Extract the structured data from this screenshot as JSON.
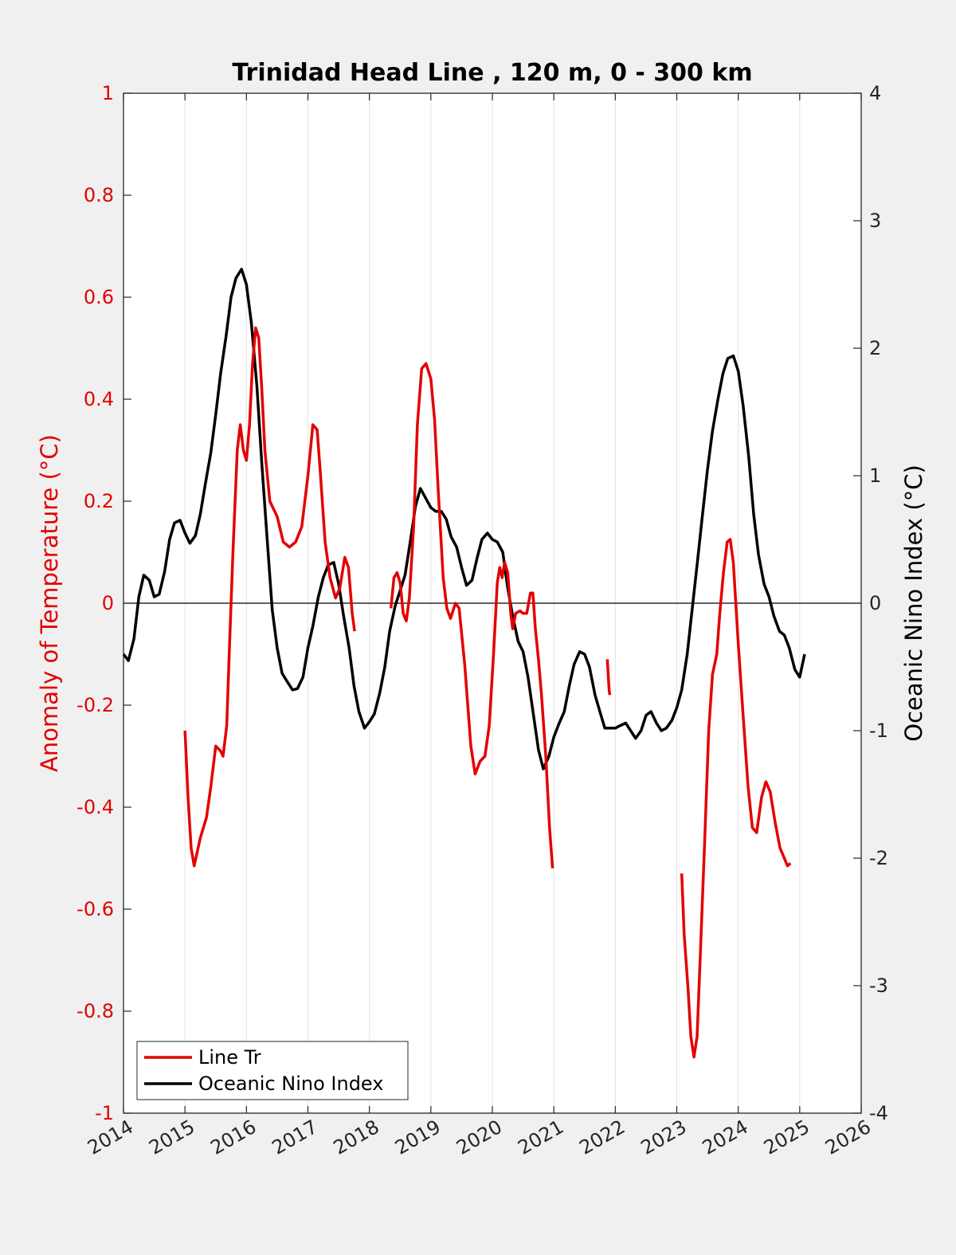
{
  "chart_data": {
    "type": "line",
    "title": "Trinidad Head Line , 120 m, 0 - 300 km",
    "ylabel_left": "Anomaly of Temperature (°C)",
    "ylabel_right": "Oceanic Nino Index (°C)",
    "xlim": [
      2014,
      2026
    ],
    "ylim_left": [
      -1,
      1
    ],
    "ylim_right": [
      -4,
      4
    ],
    "x_ticks": [
      "2014",
      "2015",
      "2016",
      "2017",
      "2018",
      "2019",
      "2020",
      "2021",
      "2022",
      "2023",
      "2024",
      "2025",
      "2026"
    ],
    "y_ticks_left": [
      "1",
      "0.8",
      "0.6",
      "0.4",
      "0.2",
      "0",
      "-0.2",
      "-0.4",
      "-0.6",
      "-0.8",
      "-1"
    ],
    "y_ticks_right": [
      "4",
      "3",
      "2",
      "1",
      "0",
      "-1",
      "-2",
      "-3",
      "-4"
    ],
    "grid": "vertical",
    "legend_position": "bottom-left",
    "colors": {
      "line_tr": "#e30000",
      "oni": "#000000"
    },
    "series": [
      {
        "name": "Line Tr",
        "axis": "left",
        "color": "#e30000",
        "segments": [
          [
            [
              2015.0,
              -0.25
            ],
            [
              2015.05,
              -0.38
            ],
            [
              2015.1,
              -0.48
            ],
            [
              2015.15,
              -0.515
            ],
            [
              2015.25,
              -0.46
            ],
            [
              2015.35,
              -0.42
            ],
            [
              2015.42,
              -0.36
            ],
            [
              2015.5,
              -0.28
            ],
            [
              2015.58,
              -0.29
            ],
            [
              2015.62,
              -0.3
            ],
            [
              2015.68,
              -0.24
            ],
            [
              2015.72,
              -0.1
            ],
            [
              2015.78,
              0.1
            ],
            [
              2015.85,
              0.3
            ],
            [
              2015.9,
              0.35
            ],
            [
              2015.95,
              0.3
            ],
            [
              2016.0,
              0.28
            ],
            [
              2016.05,
              0.35
            ],
            [
              2016.1,
              0.47
            ],
            [
              2016.15,
              0.54
            ],
            [
              2016.2,
              0.52
            ],
            [
              2016.25,
              0.42
            ],
            [
              2016.3,
              0.3
            ],
            [
              2016.38,
              0.2
            ],
            [
              2016.5,
              0.17
            ],
            [
              2016.6,
              0.12
            ],
            [
              2016.7,
              0.11
            ],
            [
              2016.8,
              0.12
            ],
            [
              2016.9,
              0.15
            ],
            [
              2017.0,
              0.25
            ],
            [
              2017.08,
              0.35
            ],
            [
              2017.15,
              0.34
            ],
            [
              2017.2,
              0.26
            ],
            [
              2017.28,
              0.12
            ],
            [
              2017.36,
              0.05
            ],
            [
              2017.45,
              0.01
            ],
            [
              2017.52,
              0.03
            ],
            [
              2017.6,
              0.09
            ],
            [
              2017.66,
              0.07
            ],
            [
              2017.72,
              -0.02
            ],
            [
              2017.76,
              -0.055
            ]
          ],
          [
            [
              2018.35,
              -0.01
            ],
            [
              2018.4,
              0.05
            ],
            [
              2018.45,
              0.06
            ],
            [
              2018.5,
              0.04
            ],
            [
              2018.55,
              -0.02
            ],
            [
              2018.6,
              -0.035
            ],
            [
              2018.65,
              0.01
            ],
            [
              2018.72,
              0.15
            ],
            [
              2018.78,
              0.35
            ],
            [
              2018.85,
              0.46
            ],
            [
              2018.92,
              0.47
            ],
            [
              2019.0,
              0.44
            ],
            [
              2019.06,
              0.36
            ],
            [
              2019.12,
              0.22
            ],
            [
              2019.2,
              0.05
            ],
            [
              2019.26,
              -0.01
            ],
            [
              2019.32,
              -0.03
            ],
            [
              2019.4,
              0.0
            ],
            [
              2019.46,
              -0.01
            ],
            [
              2019.55,
              -0.12
            ],
            [
              2019.65,
              -0.28
            ],
            [
              2019.72,
              -0.335
            ],
            [
              2019.8,
              -0.31
            ],
            [
              2019.88,
              -0.3
            ],
            [
              2019.95,
              -0.24
            ],
            [
              2020.02,
              -0.1
            ],
            [
              2020.08,
              0.04
            ],
            [
              2020.12,
              0.07
            ],
            [
              2020.16,
              0.05
            ],
            [
              2020.2,
              0.08
            ],
            [
              2020.25,
              0.06
            ],
            [
              2020.3,
              -0.02
            ],
            [
              2020.33,
              -0.05
            ],
            [
              2020.38,
              -0.02
            ],
            [
              2020.45,
              -0.015
            ],
            [
              2020.5,
              -0.02
            ],
            [
              2020.56,
              -0.02
            ],
            [
              2020.62,
              0.02
            ],
            [
              2020.66,
              0.02
            ],
            [
              2020.7,
              -0.05
            ],
            [
              2020.75,
              -0.11
            ],
            [
              2020.8,
              -0.18
            ],
            [
              2020.87,
              -0.3
            ],
            [
              2020.93,
              -0.44
            ],
            [
              2020.98,
              -0.52
            ]
          ],
          [
            [
              2021.87,
              -0.11
            ],
            [
              2021.88,
              -0.13
            ],
            [
              2021.89,
              -0.15
            ],
            [
              2021.9,
              -0.17
            ],
            [
              2021.91,
              -0.18
            ]
          ],
          [
            [
              2023.08,
              -0.53
            ],
            [
              2023.12,
              -0.65
            ],
            [
              2023.18,
              -0.75
            ],
            [
              2023.23,
              -0.85
            ],
            [
              2023.28,
              -0.89
            ],
            [
              2023.33,
              -0.85
            ],
            [
              2023.38,
              -0.7
            ],
            [
              2023.45,
              -0.48
            ],
            [
              2023.52,
              -0.25
            ],
            [
              2023.58,
              -0.14
            ],
            [
              2023.65,
              -0.1
            ],
            [
              2023.7,
              -0.02
            ],
            [
              2023.76,
              0.06
            ],
            [
              2023.82,
              0.12
            ],
            [
              2023.87,
              0.125
            ],
            [
              2023.92,
              0.08
            ],
            [
              2024.0,
              -0.08
            ],
            [
              2024.08,
              -0.22
            ],
            [
              2024.16,
              -0.36
            ],
            [
              2024.23,
              -0.44
            ],
            [
              2024.3,
              -0.45
            ],
            [
              2024.38,
              -0.38
            ],
            [
              2024.45,
              -0.35
            ],
            [
              2024.52,
              -0.37
            ],
            [
              2024.6,
              -0.43
            ],
            [
              2024.68,
              -0.48
            ],
            [
              2024.75,
              -0.5
            ],
            [
              2024.8,
              -0.515
            ],
            [
              2024.85,
              -0.51
            ]
          ]
        ]
      },
      {
        "name": "Oceanic Nino Index",
        "axis": "right",
        "color": "#000000",
        "segments": [
          [
            [
              2014.0,
              -0.4
            ],
            [
              2014.08,
              -0.45
            ],
            [
              2014.17,
              -0.28
            ],
            [
              2014.25,
              0.05
            ],
            [
              2014.33,
              0.22
            ],
            [
              2014.42,
              0.18
            ],
            [
              2014.5,
              0.05
            ],
            [
              2014.58,
              0.07
            ],
            [
              2014.67,
              0.25
            ],
            [
              2014.75,
              0.5
            ],
            [
              2014.83,
              0.63
            ],
            [
              2014.92,
              0.65
            ],
            [
              2015.0,
              0.55
            ],
            [
              2015.08,
              0.47
            ],
            [
              2015.17,
              0.53
            ],
            [
              2015.25,
              0.7
            ],
            [
              2015.33,
              0.93
            ],
            [
              2015.42,
              1.18
            ],
            [
              2015.5,
              1.48
            ],
            [
              2015.58,
              1.8
            ],
            [
              2015.67,
              2.1
            ],
            [
              2015.75,
              2.4
            ],
            [
              2015.83,
              2.55
            ],
            [
              2015.92,
              2.62
            ],
            [
              2016.0,
              2.5
            ],
            [
              2016.08,
              2.2
            ],
            [
              2016.17,
              1.7
            ],
            [
              2016.25,
              1.1
            ],
            [
              2016.33,
              0.55
            ],
            [
              2016.42,
              -0.05
            ],
            [
              2016.5,
              -0.35
            ],
            [
              2016.58,
              -0.55
            ],
            [
              2016.67,
              -0.62
            ],
            [
              2016.75,
              -0.68
            ],
            [
              2016.83,
              -0.67
            ],
            [
              2016.92,
              -0.58
            ],
            [
              2017.0,
              -0.35
            ],
            [
              2017.08,
              -0.18
            ],
            [
              2017.17,
              0.05
            ],
            [
              2017.25,
              0.2
            ],
            [
              2017.33,
              0.3
            ],
            [
              2017.42,
              0.32
            ],
            [
              2017.5,
              0.15
            ],
            [
              2017.58,
              -0.1
            ],
            [
              2017.67,
              -0.35
            ],
            [
              2017.75,
              -0.65
            ],
            [
              2017.83,
              -0.85
            ],
            [
              2017.92,
              -0.98
            ],
            [
              2018.0,
              -0.93
            ],
            [
              2018.08,
              -0.87
            ],
            [
              2018.17,
              -0.7
            ],
            [
              2018.25,
              -0.5
            ],
            [
              2018.33,
              -0.22
            ],
            [
              2018.42,
              -0.02
            ],
            [
              2018.5,
              0.1
            ],
            [
              2018.58,
              0.22
            ],
            [
              2018.67,
              0.5
            ],
            [
              2018.75,
              0.76
            ],
            [
              2018.83,
              0.9
            ],
            [
              2018.92,
              0.82
            ],
            [
              2019.0,
              0.75
            ],
            [
              2019.08,
              0.72
            ],
            [
              2019.17,
              0.72
            ],
            [
              2019.25,
              0.66
            ],
            [
              2019.33,
              0.52
            ],
            [
              2019.42,
              0.44
            ],
            [
              2019.5,
              0.28
            ],
            [
              2019.58,
              0.14
            ],
            [
              2019.67,
              0.18
            ],
            [
              2019.75,
              0.35
            ],
            [
              2019.83,
              0.5
            ],
            [
              2019.92,
              0.55
            ],
            [
              2020.0,
              0.5
            ],
            [
              2020.08,
              0.48
            ],
            [
              2020.17,
              0.4
            ],
            [
              2020.25,
              0.12
            ],
            [
              2020.33,
              -0.1
            ],
            [
              2020.42,
              -0.3
            ],
            [
              2020.5,
              -0.38
            ],
            [
              2020.58,
              -0.58
            ],
            [
              2020.67,
              -0.88
            ],
            [
              2020.75,
              -1.15
            ],
            [
              2020.83,
              -1.3
            ],
            [
              2020.92,
              -1.2
            ],
            [
              2021.0,
              -1.05
            ],
            [
              2021.08,
              -0.95
            ],
            [
              2021.17,
              -0.85
            ],
            [
              2021.25,
              -0.65
            ],
            [
              2021.33,
              -0.48
            ],
            [
              2021.42,
              -0.38
            ],
            [
              2021.5,
              -0.4
            ],
            [
              2021.58,
              -0.5
            ],
            [
              2021.67,
              -0.72
            ],
            [
              2021.75,
              -0.85
            ],
            [
              2021.83,
              -0.98
            ],
            [
              2021.92,
              -0.98
            ],
            [
              2022.0,
              -0.98
            ],
            [
              2022.08,
              -0.96
            ],
            [
              2022.17,
              -0.94
            ],
            [
              2022.25,
              -1.0
            ],
            [
              2022.33,
              -1.06
            ],
            [
              2022.42,
              -1.0
            ],
            [
              2022.5,
              -0.88
            ],
            [
              2022.58,
              -0.85
            ],
            [
              2022.67,
              -0.94
            ],
            [
              2022.75,
              -1.0
            ],
            [
              2022.83,
              -0.98
            ],
            [
              2022.92,
              -0.92
            ],
            [
              2023.0,
              -0.82
            ],
            [
              2023.08,
              -0.68
            ],
            [
              2023.17,
              -0.4
            ],
            [
              2023.25,
              -0.05
            ],
            [
              2023.33,
              0.3
            ],
            [
              2023.42,
              0.7
            ],
            [
              2023.5,
              1.05
            ],
            [
              2023.58,
              1.35
            ],
            [
              2023.67,
              1.6
            ],
            [
              2023.75,
              1.8
            ],
            [
              2023.83,
              1.92
            ],
            [
              2023.92,
              1.94
            ],
            [
              2024.0,
              1.82
            ],
            [
              2024.08,
              1.55
            ],
            [
              2024.17,
              1.15
            ],
            [
              2024.25,
              0.7
            ],
            [
              2024.33,
              0.38
            ],
            [
              2024.42,
              0.15
            ],
            [
              2024.5,
              0.05
            ],
            [
              2024.58,
              -0.1
            ],
            [
              2024.67,
              -0.22
            ],
            [
              2024.75,
              -0.25
            ],
            [
              2024.83,
              -0.35
            ],
            [
              2024.92,
              -0.52
            ],
            [
              2025.0,
              -0.58
            ],
            [
              2025.08,
              -0.4
            ]
          ]
        ]
      }
    ]
  }
}
